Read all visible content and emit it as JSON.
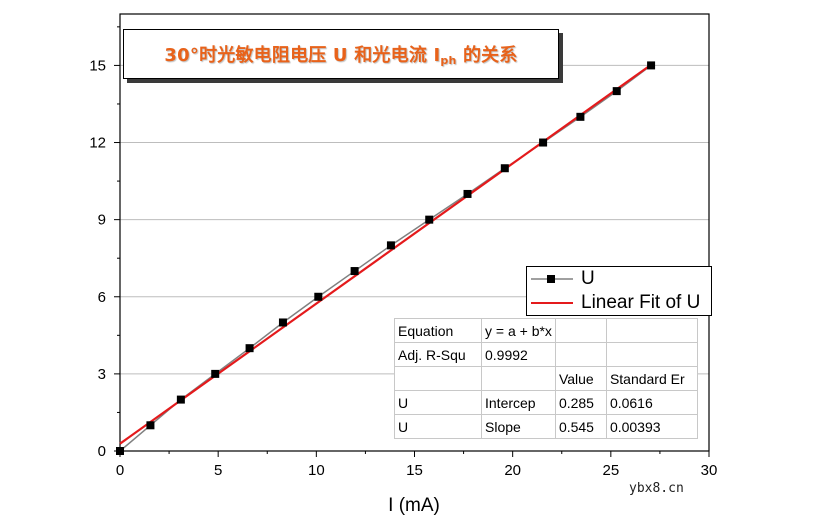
{
  "title": {
    "main": "30°时光敏电阻电压 U 和光电流 I",
    "sub": "ph",
    "tail": " 的关系"
  },
  "legend": {
    "entries": [
      "U",
      "Linear Fit of U"
    ]
  },
  "fit_table": {
    "rows": [
      [
        "Equation",
        "y = a + b*x",
        "",
        ""
      ],
      [
        "Adj. R-Squ",
        "0.9992",
        "",
        ""
      ],
      [
        "",
        "",
        "Value",
        "Standard Er"
      ],
      [
        "U",
        "Intercep",
        "0.285",
        "0.0616"
      ],
      [
        "U",
        "Slope",
        "0.545",
        "0.00393"
      ]
    ]
  },
  "watermark": "ybx8.cn",
  "chart_data": {
    "type": "line",
    "xlabel": "I (mA)",
    "ylabel": "",
    "xlim": [
      0,
      30
    ],
    "ylim": [
      0,
      17
    ],
    "xticks": [
      0,
      5,
      10,
      15,
      20,
      25,
      30
    ],
    "yticks": [
      0,
      3,
      6,
      9,
      12,
      15
    ],
    "grid": true,
    "legend_position": "right-middle",
    "series": [
      {
        "name": "U",
        "style": "line+square-markers",
        "color": "#000000",
        "line_color": "#808080",
        "x": [
          0,
          1.55,
          3.1,
          4.85,
          6.6,
          8.3,
          10.1,
          11.95,
          13.8,
          15.75,
          17.7,
          19.6,
          21.55,
          23.45,
          25.3,
          27.05
        ],
        "y": [
          0,
          1,
          2,
          3,
          4,
          5,
          6,
          7,
          8,
          9,
          10,
          11,
          12,
          13,
          14,
          15
        ]
      },
      {
        "name": "Linear Fit of U",
        "style": "line",
        "color": "#e41a1c",
        "intercept": 0.285,
        "slope": 0.545,
        "x_range": [
          0,
          27.05
        ]
      }
    ]
  }
}
